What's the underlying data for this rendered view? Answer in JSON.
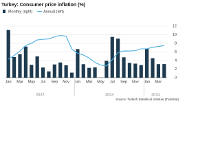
{
  "chart_data": {
    "type": "bar-line",
    "title": "Turkey: Consumer price inflation (%)",
    "source": "Source: Turkish Statistical Institute (TurkStat)",
    "categories": [
      "Jan",
      null,
      "Mar",
      null,
      "May",
      null,
      "Jul",
      null,
      "Sep",
      null,
      "Nov",
      null,
      "Jan",
      null,
      "Mar",
      null,
      "May",
      null,
      "Jul",
      null,
      "Sep",
      null,
      "Nov",
      null,
      "Jan",
      null,
      "Mar",
      null
    ],
    "year_labels": [
      "2022",
      "2023",
      "2024"
    ],
    "series": [
      {
        "name": "Monthly (right)",
        "color": "#1d3a4f",
        "axis": "y2",
        "values": [
          11.1,
          4.81,
          5.46,
          7.25,
          2.98,
          4.95,
          2.37,
          1.46,
          3.08,
          3.54,
          2.88,
          1.18,
          6.65,
          3.15,
          2.29,
          2.39,
          0.04,
          3.92,
          9.49,
          9.09,
          4.75,
          3.43,
          3.28,
          2.93,
          6.7,
          4.53,
          3.16,
          3.18
        ]
      },
      {
        "name": "Annual (left)",
        "color": "#4aaee0",
        "values": [
          48.7,
          54.4,
          61.1,
          70.0,
          73.5,
          78.6,
          79.6,
          80.2,
          83.5,
          85.5,
          84.4,
          64.3,
          57.7,
          55.2,
          50.5,
          43.7,
          39.6,
          38.2,
          47.8,
          58.9,
          61.5,
          61.4,
          62.0,
          64.8,
          64.9,
          67.1,
          68.5,
          69.8
        ]
      }
    ],
    "ylim": [
      20,
      100
    ],
    "y2lim": [
      0,
      12
    ],
    "y2ticks": [
      0,
      2,
      4,
      6,
      8,
      10,
      12
    ],
    "grid": true
  }
}
